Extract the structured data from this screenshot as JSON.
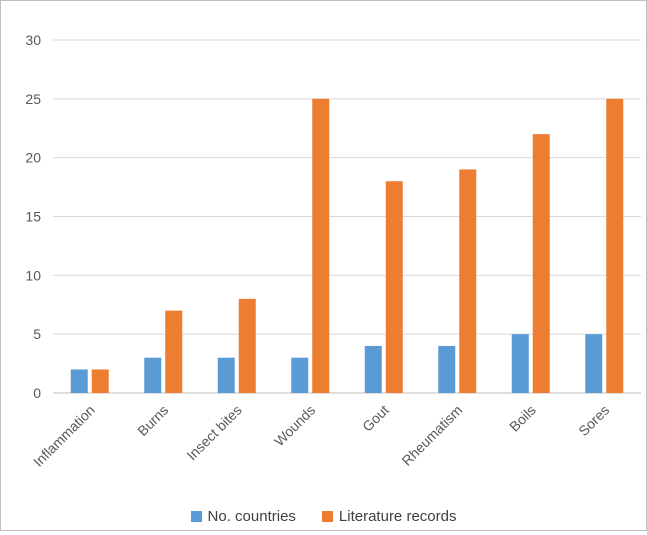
{
  "chart_data": {
    "type": "bar",
    "categories": [
      "Inflammation",
      "Burns",
      "Insect bites",
      "Wounds",
      "Gout",
      "Rheumatism",
      "Boils",
      "Sores"
    ],
    "series": [
      {
        "name": "No. countries",
        "color": "#5b9bd5",
        "values": [
          2,
          3,
          3,
          3,
          4,
          4,
          5,
          5
        ]
      },
      {
        "name": "Literature records",
        "color": "#ed7d31",
        "values": [
          2,
          7,
          8,
          25,
          18,
          19,
          22,
          25
        ]
      }
    ],
    "title": "",
    "xlabel": "",
    "ylabel": "",
    "ylim": [
      0,
      30
    ],
    "yticks": [
      0,
      5,
      10,
      15,
      20,
      25,
      30
    ],
    "grid": true,
    "legend": "bottom"
  }
}
